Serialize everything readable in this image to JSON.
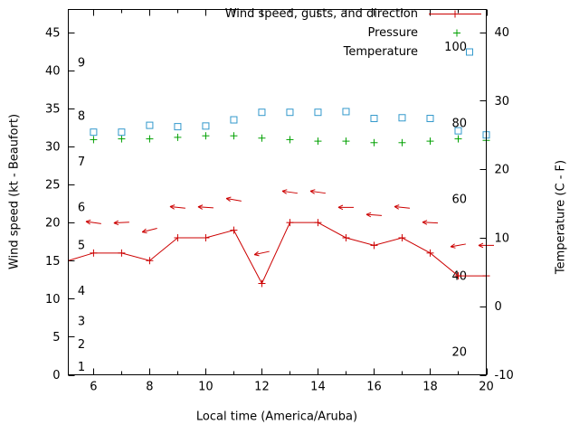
{
  "chart_data": {
    "type": "line",
    "title": "",
    "xlabel": "Local time (America/Aruba)",
    "ylabel": "Wind speed (kt - Beaufort)",
    "y2label": "Temperature (C - F)",
    "x_range": [
      5.1,
      20
    ],
    "y_range": [
      0,
      48
    ],
    "y2_range": [
      -10,
      43.3
    ],
    "x_ticks": [
      6,
      8,
      10,
      12,
      14,
      16,
      18,
      20
    ],
    "x_minor_ticks": [
      7,
      9,
      11,
      13,
      15,
      17,
      19
    ],
    "y_ticks": [
      0,
      5,
      10,
      15,
      20,
      25,
      30,
      35,
      40,
      45
    ],
    "y2_ticks": [
      -10,
      0,
      10,
      20,
      30,
      40
    ],
    "beaufort_scale_labels": [
      {
        "text": "1",
        "kt": 1
      },
      {
        "text": "2",
        "kt": 4
      },
      {
        "text": "3",
        "kt": 7
      },
      {
        "text": "4",
        "kt": 11
      },
      {
        "text": "5",
        "kt": 17
      },
      {
        "text": "6",
        "kt": 22
      },
      {
        "text": "7",
        "kt": 28
      },
      {
        "text": "8",
        "kt": 34
      },
      {
        "text": "9",
        "kt": 41
      }
    ],
    "fahrenheit_scale_labels": [
      {
        "text": "20",
        "c": -6.7
      },
      {
        "text": "40",
        "c": 4.4
      },
      {
        "text": "60",
        "c": 15.6
      },
      {
        "text": "80",
        "c": 26.7
      },
      {
        "text": "100",
        "c": 37.8
      }
    ],
    "legend": {
      "position": "top-right-inside",
      "entries": [
        {
          "label": "Wind speed, gusts, and direction",
          "marker": "line-plus",
          "color": "#cc0000"
        },
        {
          "label": "Pressure",
          "marker": "plus",
          "color": "#00a000"
        },
        {
          "label": "Temperature",
          "marker": "open-square",
          "color": "#3399cc"
        }
      ]
    },
    "series": [
      {
        "name": "Wind speed",
        "axis": "y",
        "color": "#cc0000",
        "style": "line-plus",
        "first_point_no_marker": true,
        "x": [
          5.1,
          6,
          7,
          8,
          9,
          10,
          11,
          12,
          13,
          14,
          15,
          16,
          17,
          18,
          19,
          20
        ],
        "y": [
          15,
          16,
          16,
          15,
          18,
          18,
          19,
          12,
          20,
          20,
          18,
          17,
          18,
          16,
          13,
          13
        ]
      },
      {
        "name": "Wind gusts and direction",
        "axis": "y",
        "color": "#cc0000",
        "style": "arrows",
        "points": [
          {
            "x": 6,
            "y": 20,
            "tilt": 8
          },
          {
            "x": 7,
            "y": 20,
            "tilt": -3
          },
          {
            "x": 8,
            "y": 19,
            "tilt": -14
          },
          {
            "x": 9,
            "y": 22,
            "tilt": 6
          },
          {
            "x": 10,
            "y": 22,
            "tilt": 4
          },
          {
            "x": 11,
            "y": 23,
            "tilt": 10
          },
          {
            "x": 12,
            "y": 16,
            "tilt": -12
          },
          {
            "x": 13,
            "y": 24,
            "tilt": 8
          },
          {
            "x": 14,
            "y": 24,
            "tilt": 8
          },
          {
            "x": 15,
            "y": 22,
            "tilt": 0
          },
          {
            "x": 16,
            "y": 21,
            "tilt": 4
          },
          {
            "x": 17,
            "y": 22,
            "tilt": 6
          },
          {
            "x": 18,
            "y": 20,
            "tilt": 3
          },
          {
            "x": 19,
            "y": 17,
            "tilt": -10
          },
          {
            "x": 20,
            "y": 17,
            "tilt": 0
          }
        ]
      },
      {
        "name": "Pressure",
        "axis": "y",
        "color": "#00a000",
        "style": "plus",
        "x": [
          6,
          7,
          8,
          9,
          10,
          11,
          12,
          13,
          14,
          15,
          16,
          17,
          18,
          19,
          20
        ],
        "y": [
          30.9,
          31.0,
          31.0,
          31.2,
          31.4,
          31.4,
          31.1,
          30.9,
          30.7,
          30.7,
          30.5,
          30.5,
          30.7,
          31.0,
          30.8
        ]
      },
      {
        "name": "Temperature",
        "axis": "y2",
        "color": "#3399cc",
        "style": "open-square",
        "x": [
          6,
          7,
          8,
          9,
          10,
          11,
          12,
          13,
          14,
          15,
          16,
          17,
          18,
          19,
          20
        ],
        "y": [
          25.4,
          25.4,
          26.4,
          26.2,
          26.3,
          27.2,
          28.3,
          28.3,
          28.3,
          28.4,
          27.4,
          27.5,
          27.4,
          25.6,
          25.0
        ]
      }
    ]
  }
}
